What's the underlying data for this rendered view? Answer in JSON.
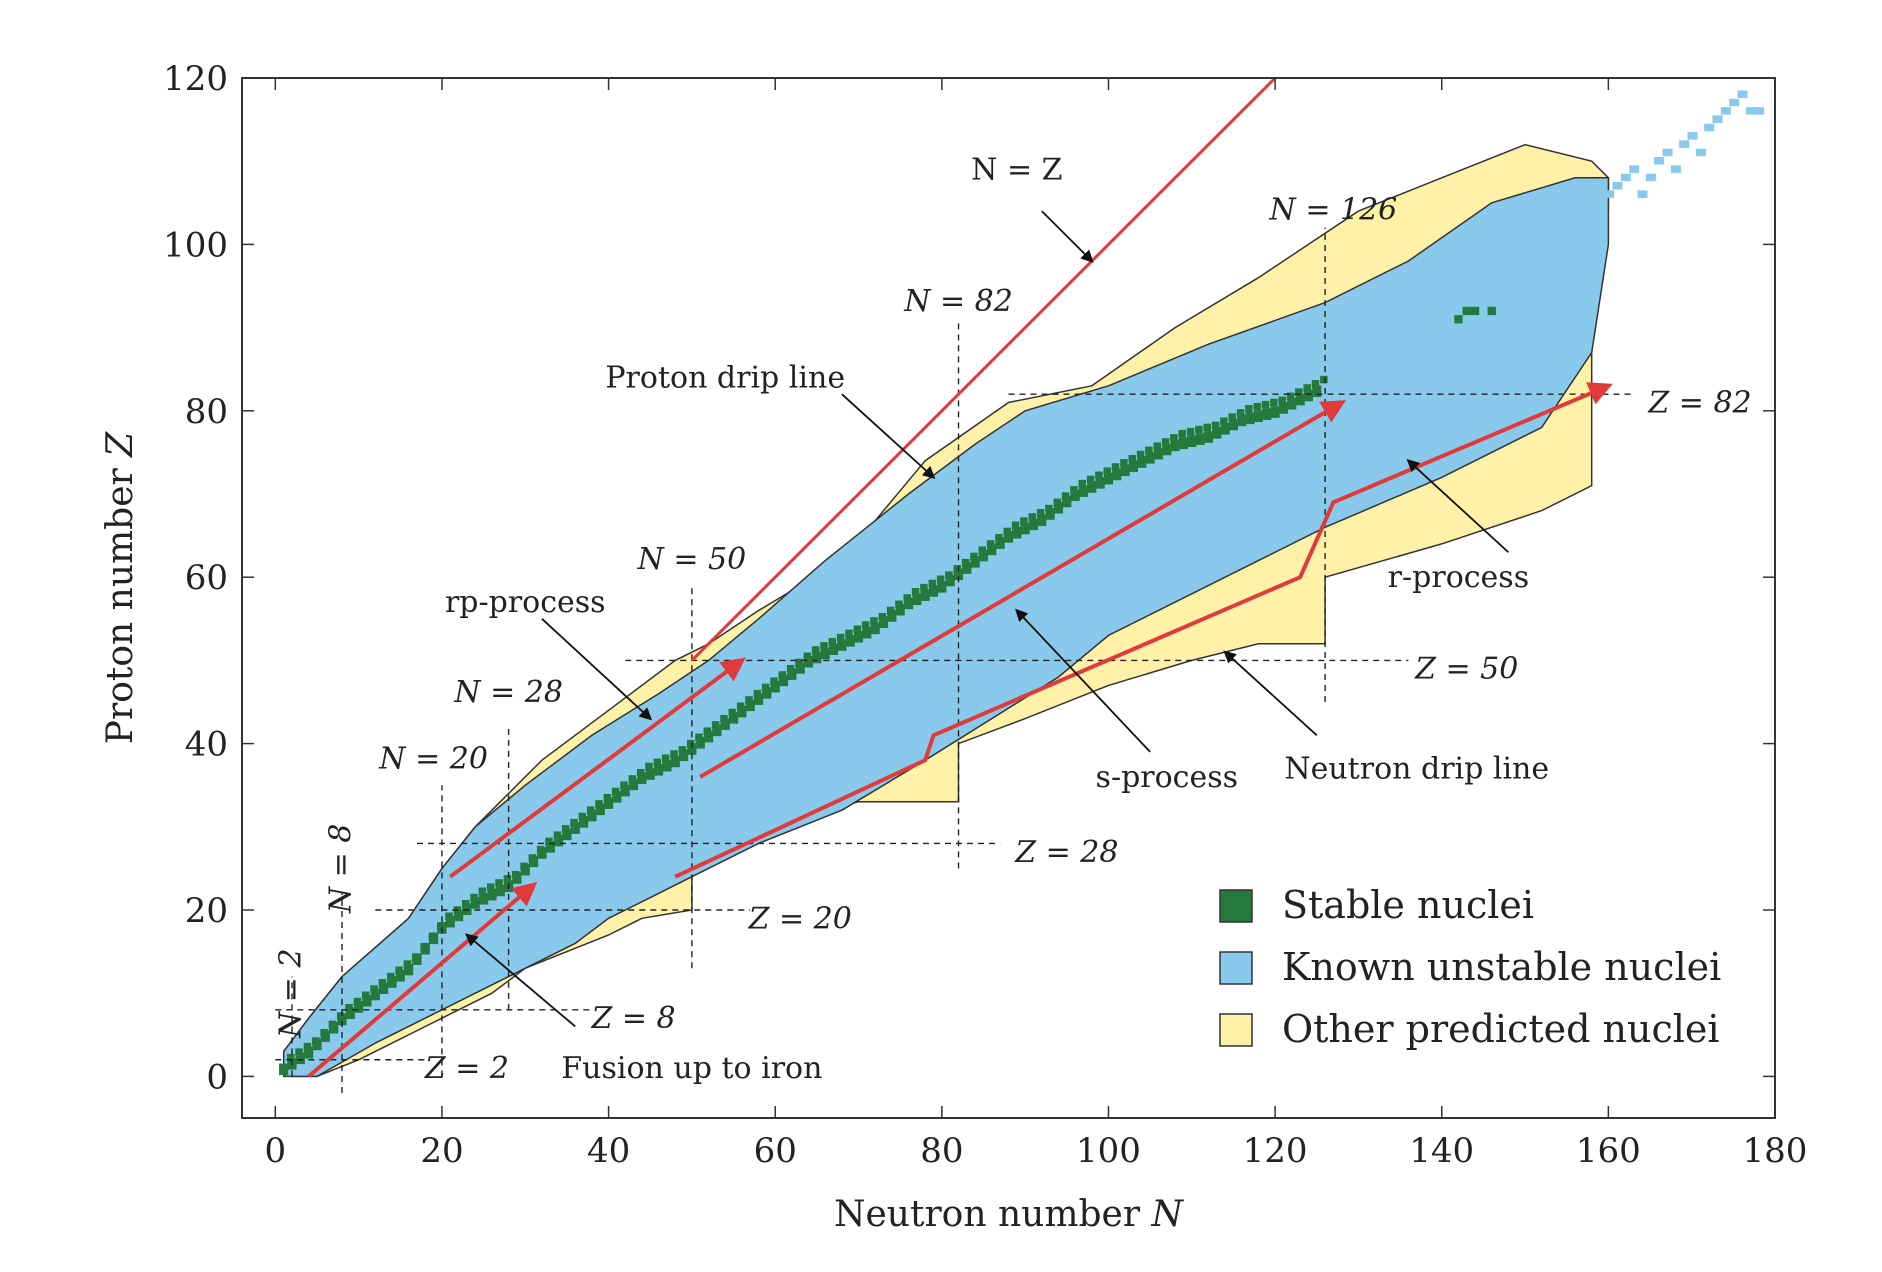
{
  "chart_data": {
    "type": "scatter",
    "xlabel": "Neutron number",
    "xlabel_var": "N",
    "ylabel": "Proton number",
    "ylabel_var": "Z",
    "xlim": [
      -4,
      180
    ],
    "ylim": [
      -5,
      120
    ],
    "x_ticks": [
      0,
      20,
      40,
      60,
      80,
      100,
      120,
      140,
      160,
      180
    ],
    "y_ticks": [
      0,
      20,
      40,
      60,
      80,
      100,
      120
    ],
    "grid": false,
    "legend_position": "bottom-right",
    "colors": {
      "stable": "#247a3c",
      "known": "#88c9ec",
      "predicted": "#fff2a8",
      "arrow": "#e03a3a",
      "outline": "#333333"
    },
    "legend": [
      {
        "key": "stable",
        "label": "Stable nuclei"
      },
      {
        "key": "known",
        "label": "Known unstable nuclei"
      },
      {
        "key": "predicted",
        "label": "Other predicted nuclei"
      }
    ],
    "predicted_region": [
      [
        2,
        0
      ],
      [
        5,
        0
      ],
      [
        10,
        2
      ],
      [
        18,
        6
      ],
      [
        26,
        10
      ],
      [
        30,
        13
      ],
      [
        40,
        17
      ],
      [
        44,
        19
      ],
      [
        50,
        20
      ],
      [
        50,
        24
      ],
      [
        56,
        28
      ],
      [
        62,
        31
      ],
      [
        70,
        33
      ],
      [
        78,
        33
      ],
      [
        82,
        33
      ],
      [
        82,
        40
      ],
      [
        90,
        43
      ],
      [
        100,
        47
      ],
      [
        110,
        50
      ],
      [
        118,
        52
      ],
      [
        126,
        52
      ],
      [
        126,
        60
      ],
      [
        140,
        64
      ],
      [
        152,
        68
      ],
      [
        158,
        71
      ],
      [
        158,
        90
      ],
      [
        160,
        104
      ],
      [
        160,
        108
      ],
      [
        158,
        110
      ],
      [
        150,
        112
      ],
      [
        140,
        108
      ],
      [
        130,
        104
      ],
      [
        124,
        100
      ],
      [
        118,
        96
      ],
      [
        108,
        90
      ],
      [
        98,
        83
      ],
      [
        88,
        81
      ],
      [
        78,
        74
      ],
      [
        68,
        62
      ],
      [
        58,
        56
      ],
      [
        52,
        52
      ],
      [
        48,
        50
      ],
      [
        40,
        44
      ],
      [
        32,
        38
      ],
      [
        24,
        30
      ],
      [
        20,
        25
      ],
      [
        16,
        19
      ],
      [
        8,
        12
      ],
      [
        4,
        7
      ],
      [
        1,
        3
      ]
    ],
    "known_region": [
      [
        1,
        0
      ],
      [
        5,
        0
      ],
      [
        12,
        4
      ],
      [
        20,
        8
      ],
      [
        28,
        12
      ],
      [
        36,
        16
      ],
      [
        40,
        19
      ],
      [
        46,
        22
      ],
      [
        50,
        24
      ],
      [
        58,
        28
      ],
      [
        68,
        32
      ],
      [
        78,
        38
      ],
      [
        86,
        43
      ],
      [
        94,
        48
      ],
      [
        100,
        53
      ],
      [
        110,
        58
      ],
      [
        118,
        62
      ],
      [
        126,
        66
      ],
      [
        140,
        72
      ],
      [
        152,
        78
      ],
      [
        158,
        87
      ],
      [
        160,
        100
      ],
      [
        160,
        104
      ],
      [
        160,
        108
      ],
      [
        156,
        108
      ],
      [
        146,
        105
      ],
      [
        136,
        98
      ],
      [
        126,
        93
      ],
      [
        112,
        88
      ],
      [
        100,
        83
      ],
      [
        90,
        80
      ],
      [
        84,
        76
      ],
      [
        76,
        70
      ],
      [
        66,
        62
      ],
      [
        58,
        55
      ],
      [
        52,
        50
      ],
      [
        46,
        46
      ],
      [
        38,
        41
      ],
      [
        30,
        35
      ],
      [
        24,
        30
      ],
      [
        20,
        25
      ],
      [
        16,
        19
      ],
      [
        8,
        12
      ],
      [
        4,
        7
      ],
      [
        1,
        3
      ]
    ],
    "stable_valley": [
      [
        1,
        1
      ],
      [
        4,
        3
      ],
      [
        8,
        7
      ],
      [
        12,
        10
      ],
      [
        16,
        13
      ],
      [
        20,
        18
      ],
      [
        24,
        21
      ],
      [
        28,
        23
      ],
      [
        32,
        27
      ],
      [
        36,
        30
      ],
      [
        40,
        33
      ],
      [
        44,
        36
      ],
      [
        48,
        38
      ],
      [
        52,
        41
      ],
      [
        56,
        44
      ],
      [
        60,
        47
      ],
      [
        64,
        50
      ],
      [
        68,
        52
      ],
      [
        72,
        54
      ],
      [
        76,
        57
      ],
      [
        80,
        59
      ],
      [
        84,
        62
      ],
      [
        88,
        65
      ],
      [
        92,
        67
      ],
      [
        96,
        70
      ],
      [
        100,
        72
      ],
      [
        104,
        74
      ],
      [
        108,
        76
      ],
      [
        112,
        77
      ],
      [
        116,
        79
      ],
      [
        120,
        80
      ],
      [
        124,
        82
      ],
      [
        126,
        83
      ]
    ],
    "stable_extra": [
      [
        142,
        91
      ],
      [
        143,
        92
      ],
      [
        144,
        92
      ],
      [
        146,
        92
      ]
    ],
    "known_superheavy_scatter": [
      [
        159,
        104
      ],
      [
        160,
        106
      ],
      [
        161,
        107
      ],
      [
        162,
        108
      ],
      [
        163,
        109
      ],
      [
        164,
        106
      ],
      [
        165,
        108
      ],
      [
        166,
        110
      ],
      [
        167,
        111
      ],
      [
        168,
        109
      ],
      [
        169,
        112
      ],
      [
        170,
        113
      ],
      [
        171,
        111
      ],
      [
        172,
        114
      ],
      [
        173,
        115
      ],
      [
        174,
        116
      ],
      [
        175,
        117
      ],
      [
        176,
        118
      ],
      [
        177,
        116
      ],
      [
        178,
        116
      ]
    ],
    "magic_vertical": [
      {
        "value": 2,
        "label": "N = 2",
        "from": 0,
        "to": 12,
        "label_at": [
          3,
          10
        ],
        "rotate": true
      },
      {
        "value": 8,
        "label": "N = 8",
        "from": -2,
        "to": 22,
        "label_at": [
          9,
          25
        ],
        "rotate": true
      },
      {
        "value": 20,
        "label": "N = 20",
        "from": 0,
        "to": 35,
        "label_at": [
          19,
          37
        ]
      },
      {
        "value": 28,
        "label": "N = 28",
        "from": 8,
        "to": 42,
        "label_at": [
          28,
          45
        ]
      },
      {
        "value": 50,
        "label": "N = 50",
        "from": 13,
        "to": 59,
        "label_at": [
          50,
          61
        ]
      },
      {
        "value": 82,
        "label": "N = 82",
        "from": 25,
        "to": 91,
        "label_at": [
          82,
          92
        ]
      },
      {
        "value": 126,
        "label": "N = 126",
        "from": 45,
        "to": 102,
        "label_at": [
          127,
          103
        ]
      }
    ],
    "magic_horizontal": [
      {
        "value": 2,
        "label": "Z = 2",
        "from": 0,
        "to": 18,
        "label_at": [
          23,
          1
        ]
      },
      {
        "value": 8,
        "label": "Z = 8",
        "from": 0,
        "to": 38,
        "label_at": [
          43,
          7
        ]
      },
      {
        "value": 20,
        "label": "Z = 20",
        "from": 12,
        "to": 57,
        "label_at": [
          63,
          19
        ]
      },
      {
        "value": 28,
        "label": "Z = 28",
        "from": 17,
        "to": 87,
        "label_at": [
          95,
          27
        ]
      },
      {
        "value": 50,
        "label": "Z = 50",
        "from": 42,
        "to": 136,
        "label_at": [
          143,
          49
        ]
      },
      {
        "value": 82,
        "label": "Z = 82",
        "from": 88,
        "to": 163,
        "label_at": [
          171,
          81
        ]
      }
    ],
    "n_equals_z": {
      "label": "N = Z",
      "from": [
        50,
        50
      ],
      "to": [
        120,
        120
      ]
    },
    "process_arrows": [
      {
        "name": "fusion",
        "points": [
          [
            4,
            0
          ],
          [
            31,
            23
          ]
        ]
      },
      {
        "name": "rp",
        "points": [
          [
            21,
            24
          ],
          [
            56,
            50
          ]
        ]
      },
      {
        "name": "s",
        "points": [
          [
            51,
            36
          ],
          [
            128,
            81
          ]
        ]
      },
      {
        "name": "r-low",
        "points": [
          [
            48,
            24
          ],
          [
            78,
            38
          ],
          [
            79,
            41
          ],
          [
            123,
            60
          ],
          [
            127,
            69
          ],
          [
            160,
            83
          ]
        ]
      }
    ],
    "annotations": [
      {
        "text": "N = Z",
        "at": [
          89,
          109
        ],
        "arrow_from": [
          92,
          104
        ],
        "arrow_to": [
          98,
          98
        ]
      },
      {
        "text": "Proton drip line",
        "at": [
          54,
          84
        ],
        "arrow_from": [
          68,
          82
        ],
        "arrow_to": [
          79,
          72
        ]
      },
      {
        "text": "rp-process",
        "at": [
          30,
          57
        ],
        "arrow_from": [
          32,
          55
        ],
        "arrow_to": [
          45,
          43
        ]
      },
      {
        "text": "s-process",
        "at": [
          107,
          36
        ],
        "arrow_from": [
          105,
          39
        ],
        "arrow_to": [
          89,
          56
        ]
      },
      {
        "text": "Neutron drip line",
        "at": [
          137,
          37
        ],
        "arrow_from": [
          125,
          41
        ],
        "arrow_to": [
          114,
          51
        ]
      },
      {
        "text": "r-process",
        "at": [
          142,
          60
        ],
        "arrow_from": [
          148,
          63
        ],
        "arrow_to": [
          136,
          74
        ]
      },
      {
        "text": "Fusion up to iron",
        "at": [
          50,
          1
        ],
        "arrow_from": [
          36,
          6
        ],
        "arrow_to": [
          23,
          17
        ]
      }
    ]
  }
}
